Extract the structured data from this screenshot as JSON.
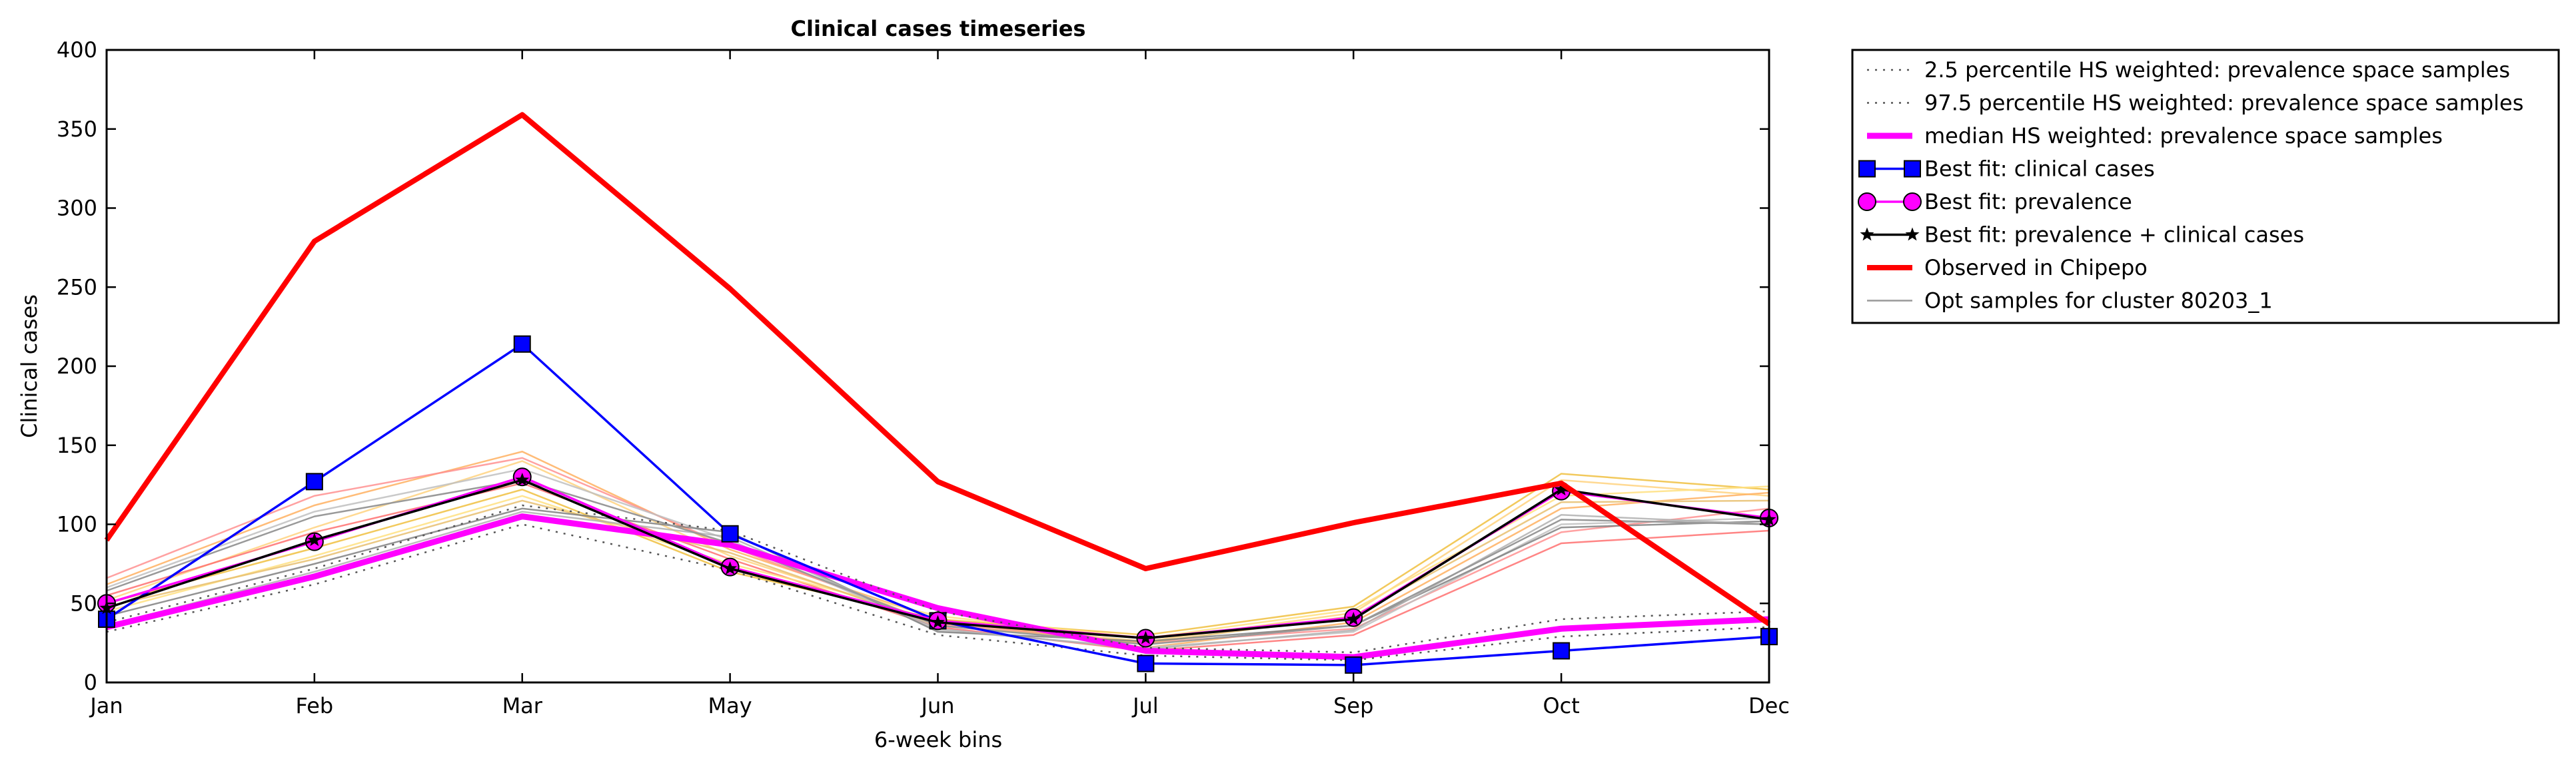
{
  "chart_data": {
    "type": "line",
    "title": "Clinical cases timeseries",
    "xlabel": "6-week bins",
    "ylabel": "Clinical cases",
    "categories": [
      "Jan",
      "Feb",
      "Mar",
      "May",
      "Jun",
      "Jul",
      "Sep",
      "Oct",
      "Dec"
    ],
    "ylim": [
      0,
      400
    ],
    "yticks": [
      0,
      50,
      100,
      150,
      200,
      250,
      300,
      350,
      400
    ],
    "grid": false,
    "legend_position": "outside-right-top",
    "series": [
      {
        "name": "2.5 percentile HS weighted: prevalence space samples",
        "style": "dotted",
        "color": "#555555",
        "values": [
          32,
          62,
          100,
          71,
          30,
          17,
          14,
          29,
          35
        ]
      },
      {
        "name": "97.5 percentile HS weighted: prevalence space samples",
        "style": "dotted",
        "color": "#555555",
        "values": [
          38,
          72,
          112,
          96,
          45,
          22,
          19,
          40,
          45
        ]
      },
      {
        "name": "median HS weighted: prevalence space samples",
        "style": "solid",
        "color": "#ff00ff",
        "values": [
          35,
          67,
          105,
          87,
          47,
          20,
          16,
          34,
          40
        ]
      },
      {
        "name": "Best fit: clinical cases",
        "style": "marker-square",
        "color": "#0000ff",
        "values": [
          40,
          127,
          214,
          94,
          39,
          12,
          11,
          20,
          29
        ]
      },
      {
        "name": "Best fit: prevalence",
        "style": "marker-circle",
        "color": "#ff00ff",
        "values": [
          50,
          89,
          130,
          73,
          39,
          28,
          41,
          121,
          104
        ]
      },
      {
        "name": "Best fit: prevalence + clinical cases",
        "style": "marker-star",
        "color": "#000000",
        "values": [
          47,
          90,
          128,
          72,
          38,
          28,
          40,
          122,
          103
        ]
      },
      {
        "name": "Observed in Chipepo",
        "style": "solid-thick",
        "color": "#ff0000",
        "values": [
          90,
          279,
          359,
          249,
          127,
          72,
          101,
          126,
          37
        ]
      },
      {
        "name": "Opt samples for cluster 80203_1",
        "style": "solid-thin",
        "color": "#999999",
        "values": [
          58,
          105,
          128,
          88,
          36,
          24,
          36,
          103,
          100
        ]
      }
    ],
    "extra_lines": [
      {
        "color": "#ffd27f",
        "values": [
          52,
          98,
          140,
          80,
          38,
          26,
          44,
          128,
          118
        ]
      },
      {
        "color": "#ffb060",
        "values": [
          62,
          112,
          146,
          84,
          40,
          22,
          38,
          110,
          120
        ]
      },
      {
        "color": "#ff9090",
        "values": [
          66,
          118,
          142,
          86,
          37,
          25,
          34,
          95,
          110
        ]
      },
      {
        "color": "#ff7070",
        "values": [
          55,
          95,
          126,
          78,
          35,
          20,
          30,
          88,
          96
        ]
      },
      {
        "color": "#f0c040",
        "values": [
          50,
          85,
          122,
          70,
          40,
          30,
          48,
          132,
          122
        ]
      },
      {
        "color": "#ffe080",
        "values": [
          45,
          80,
          118,
          75,
          42,
          28,
          46,
          118,
          124
        ]
      },
      {
        "color": "#e8c070",
        "values": [
          48,
          78,
          115,
          82,
          36,
          25,
          42,
          114,
          115
        ]
      },
      {
        "color": "#c0c0c0",
        "values": [
          60,
          108,
          135,
          90,
          33,
          22,
          32,
          100,
          104
        ]
      },
      {
        "color": "#808080",
        "values": [
          42,
          75,
          110,
          95,
          32,
          26,
          36,
          98,
          102
        ]
      },
      {
        "color": "#b0b0b0",
        "values": [
          36,
          70,
          108,
          92,
          34,
          21,
          33,
          106,
          100
        ]
      }
    ]
  }
}
